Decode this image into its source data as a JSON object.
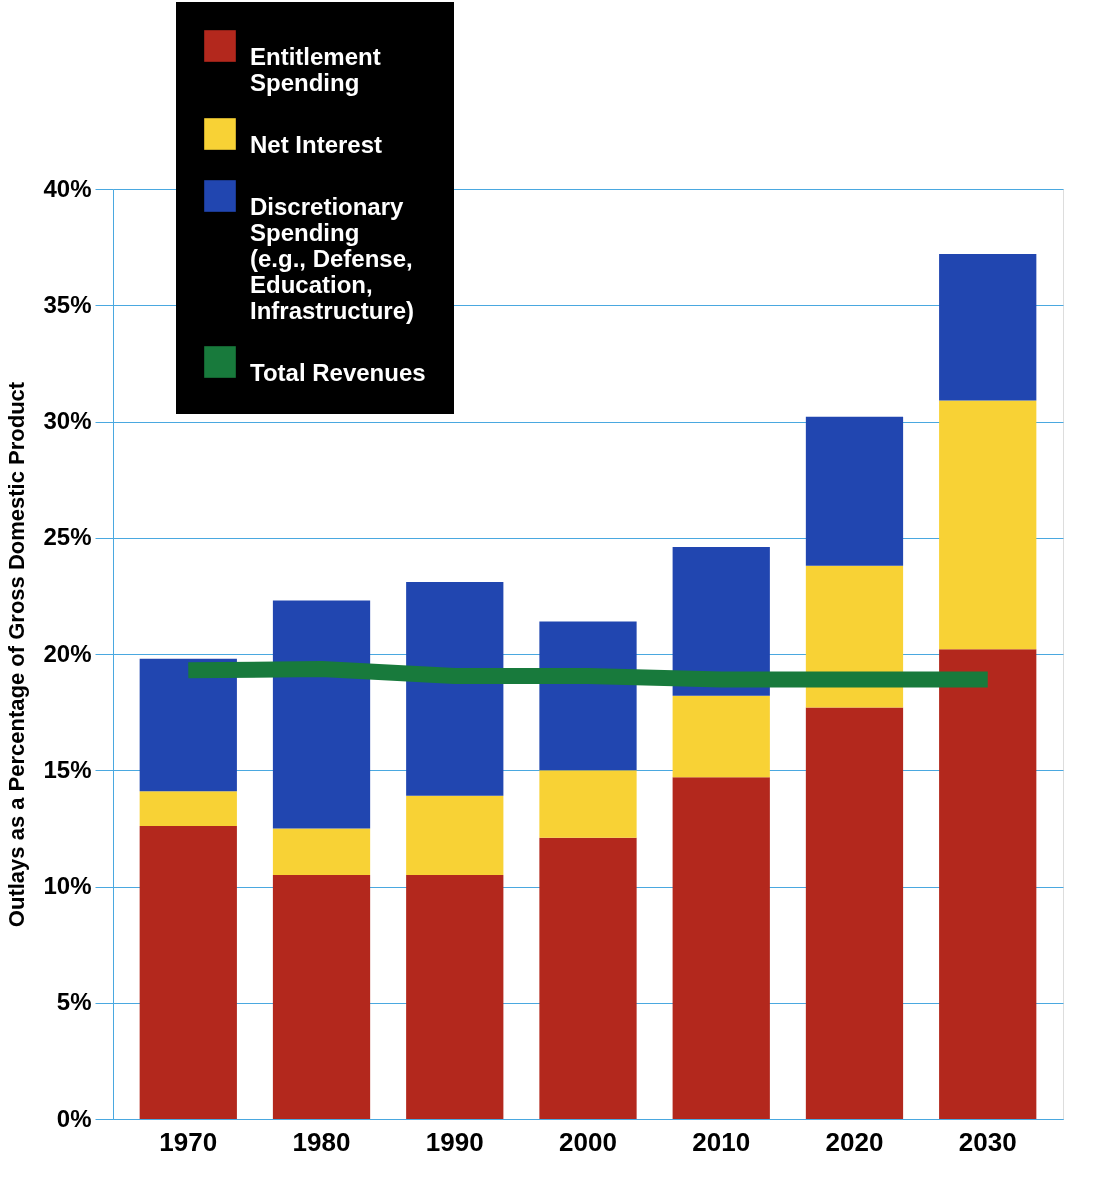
{
  "chart_data": {
    "type": "bar",
    "stacked": true,
    "ylabel": "Outlays as a Percentage of Gross Domestic Product",
    "categories": [
      "1970",
      "1980",
      "1990",
      "2000",
      "2010",
      "2020",
      "2030"
    ],
    "series": [
      {
        "name": "Entitlement\nSpending",
        "color": "#b3281d",
        "values": [
          12.6,
          10.5,
          10.5,
          12.1,
          14.7,
          17.7,
          20.2
        ]
      },
      {
        "name": "Net Interest",
        "color": "#f8d235",
        "values": [
          1.5,
          2.0,
          3.4,
          2.9,
          3.5,
          6.1,
          10.7
        ]
      },
      {
        "name": "Discretionary\nSpending\n(e.g., Defense,\nEducation,\nInfrastructure)",
        "color": "#2146b0",
        "values": [
          5.7,
          9.8,
          9.2,
          6.4,
          6.4,
          6.4,
          6.3
        ]
      },
      {
        "name": "Total Revenues",
        "color": "#187a3c",
        "type": "line",
        "values": [
          19.3,
          19.35,
          19.05,
          19.05,
          18.9,
          18.9,
          18.9
        ]
      }
    ],
    "ylim": [
      0,
      40
    ],
    "yticks": [
      {
        "value": 0,
        "label": "0%"
      },
      {
        "value": 5,
        "label": "5%"
      },
      {
        "value": 10,
        "label": "10%"
      },
      {
        "value": 15,
        "label": "15%"
      },
      {
        "value": 20,
        "label": "20%"
      },
      {
        "value": 25,
        "label": "25%"
      },
      {
        "value": 30,
        "label": "30%"
      },
      {
        "value": 35,
        "label": "35%"
      },
      {
        "value": 40,
        "label": "40%"
      }
    ],
    "grid": "y",
    "legend": "top left"
  }
}
